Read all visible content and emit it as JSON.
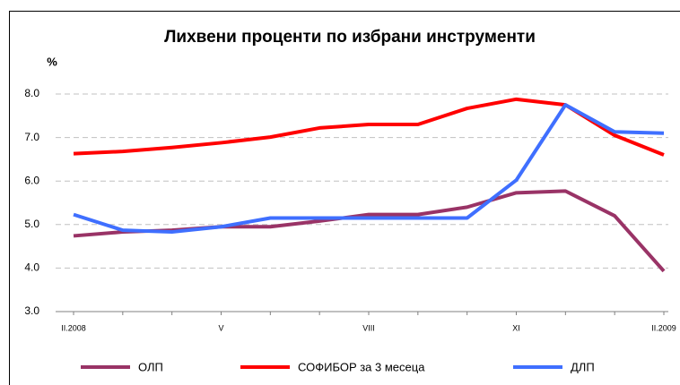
{
  "chart_data": {
    "type": "line",
    "title": "Лихвени проценти по избрани инструменти",
    "y_label": "%",
    "categories": [
      "II.2008",
      null,
      null,
      "V",
      null,
      null,
      "VIII",
      null,
      null,
      "XI",
      null,
      null,
      "II.2009"
    ],
    "series": [
      {
        "name": "ОЛП",
        "color": "#993366",
        "values": [
          4.74,
          4.83,
          4.87,
          4.95,
          4.95,
          5.08,
          5.23,
          5.23,
          5.4,
          5.73,
          5.77,
          5.2,
          3.93
        ]
      },
      {
        "name": "СОФИБОР за 3 месеца",
        "color": "#ff0000",
        "values": [
          6.63,
          6.68,
          6.77,
          6.88,
          7.01,
          7.22,
          7.3,
          7.3,
          7.67,
          7.88,
          7.75,
          7.05,
          6.6
        ]
      },
      {
        "name": "ДЛП",
        "color": "#3f6fff",
        "values": [
          5.23,
          4.87,
          4.83,
          4.95,
          5.15,
          5.15,
          5.15,
          5.15,
          5.15,
          6.02,
          7.75,
          7.13,
          7.1
        ]
      }
    ],
    "ylim": [
      3,
      8
    ],
    "yticks": [
      {
        "value": 3,
        "label": "3.0"
      },
      {
        "value": 4,
        "label": "4.0"
      },
      {
        "value": 5,
        "label": "5.0"
      },
      {
        "value": 6,
        "label": "6.0"
      },
      {
        "value": 7,
        "label": "7.0"
      },
      {
        "value": 8,
        "label": "8.0"
      }
    ],
    "grid": true
  }
}
